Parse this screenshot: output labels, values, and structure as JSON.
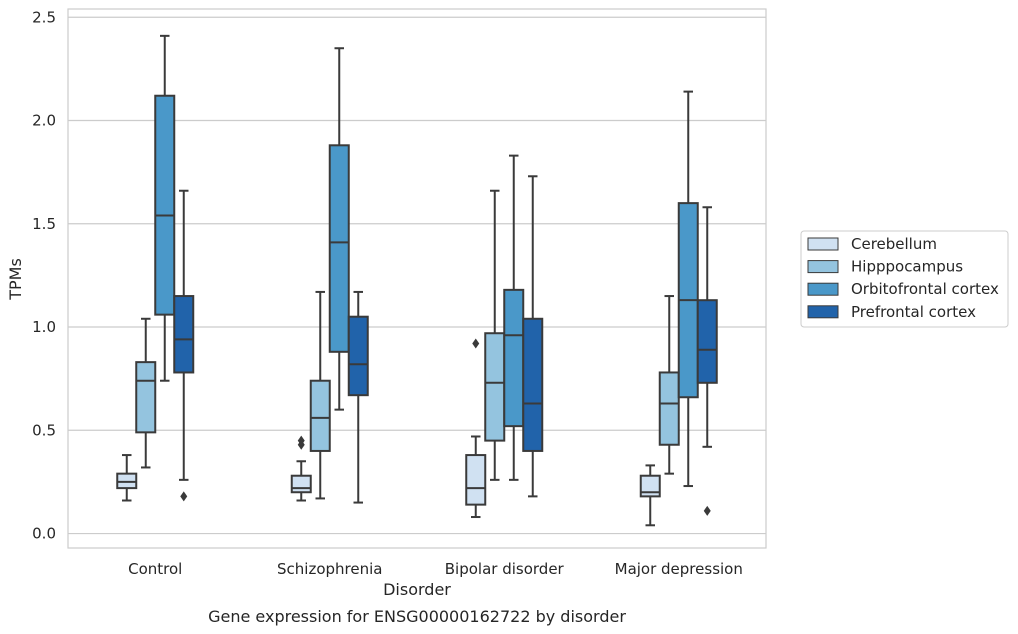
{
  "chart_data": {
    "type": "box",
    "caption": "Gene expression for ENSG00000162722 by disorder",
    "xlabel": "Disorder",
    "ylabel": "TPMs",
    "ylim": [
      -0.07,
      2.54
    ],
    "yticks": [
      0.0,
      0.5,
      1.0,
      1.5,
      2.0,
      2.5
    ],
    "ytick_labels": [
      "0.0",
      "0.5",
      "1.0",
      "1.5",
      "2.0",
      "2.5"
    ],
    "grid": "horizontal",
    "legend_position": "right",
    "categories": [
      "Control",
      "Schizophrenia",
      "Bipolar disorder",
      "Major depression"
    ],
    "series": [
      {
        "name": "Cerebellum",
        "color": "#d0e1f2",
        "boxes": [
          {
            "whisker_low": 0.16,
            "q1": 0.22,
            "median": 0.25,
            "q3": 0.29,
            "whisker_high": 0.38,
            "outliers": []
          },
          {
            "whisker_low": 0.16,
            "q1": 0.2,
            "median": 0.22,
            "q3": 0.28,
            "whisker_high": 0.35,
            "outliers": [
              0.43,
              0.45
            ]
          },
          {
            "whisker_low": 0.08,
            "q1": 0.14,
            "median": 0.22,
            "q3": 0.38,
            "whisker_high": 0.47,
            "outliers": [
              0.92
            ]
          },
          {
            "whisker_low": 0.04,
            "q1": 0.18,
            "median": 0.2,
            "q3": 0.28,
            "whisker_high": 0.33,
            "outliers": []
          }
        ]
      },
      {
        "name": "Hipppocampus",
        "color": "#94c4df",
        "boxes": [
          {
            "whisker_low": 0.32,
            "q1": 0.49,
            "median": 0.74,
            "q3": 0.83,
            "whisker_high": 1.04,
            "outliers": []
          },
          {
            "whisker_low": 0.17,
            "q1": 0.4,
            "median": 0.56,
            "q3": 0.74,
            "whisker_high": 1.17,
            "outliers": []
          },
          {
            "whisker_low": 0.26,
            "q1": 0.45,
            "median": 0.73,
            "q3": 0.97,
            "whisker_high": 1.66,
            "outliers": []
          },
          {
            "whisker_low": 0.29,
            "q1": 0.43,
            "median": 0.63,
            "q3": 0.78,
            "whisker_high": 1.15,
            "outliers": []
          }
        ]
      },
      {
        "name": "Orbitofrontal cortex",
        "color": "#4a98c9",
        "boxes": [
          {
            "whisker_low": 0.74,
            "q1": 1.06,
            "median": 1.54,
            "q3": 2.12,
            "whisker_high": 2.41,
            "outliers": []
          },
          {
            "whisker_low": 0.6,
            "q1": 0.88,
            "median": 1.41,
            "q3": 1.88,
            "whisker_high": 2.35,
            "outliers": []
          },
          {
            "whisker_low": 0.26,
            "q1": 0.52,
            "median": 0.96,
            "q3": 1.18,
            "whisker_high": 1.83,
            "outliers": []
          },
          {
            "whisker_low": 0.23,
            "q1": 0.66,
            "median": 1.13,
            "q3": 1.6,
            "whisker_high": 2.14,
            "outliers": []
          }
        ]
      },
      {
        "name": "Prefrontal cortex",
        "color": "#2163aa",
        "boxes": [
          {
            "whisker_low": 0.26,
            "q1": 0.78,
            "median": 0.94,
            "q3": 1.15,
            "whisker_high": 1.66,
            "outliers": [
              0.18
            ]
          },
          {
            "whisker_low": 0.15,
            "q1": 0.67,
            "median": 0.82,
            "q3": 1.05,
            "whisker_high": 1.17,
            "outliers": []
          },
          {
            "whisker_low": 0.18,
            "q1": 0.4,
            "median": 0.63,
            "q3": 1.04,
            "whisker_high": 1.73,
            "outliers": []
          },
          {
            "whisker_low": 0.42,
            "q1": 0.73,
            "median": 0.89,
            "q3": 1.13,
            "whisker_high": 1.58,
            "outliers": [
              0.11
            ]
          }
        ]
      }
    ]
  }
}
